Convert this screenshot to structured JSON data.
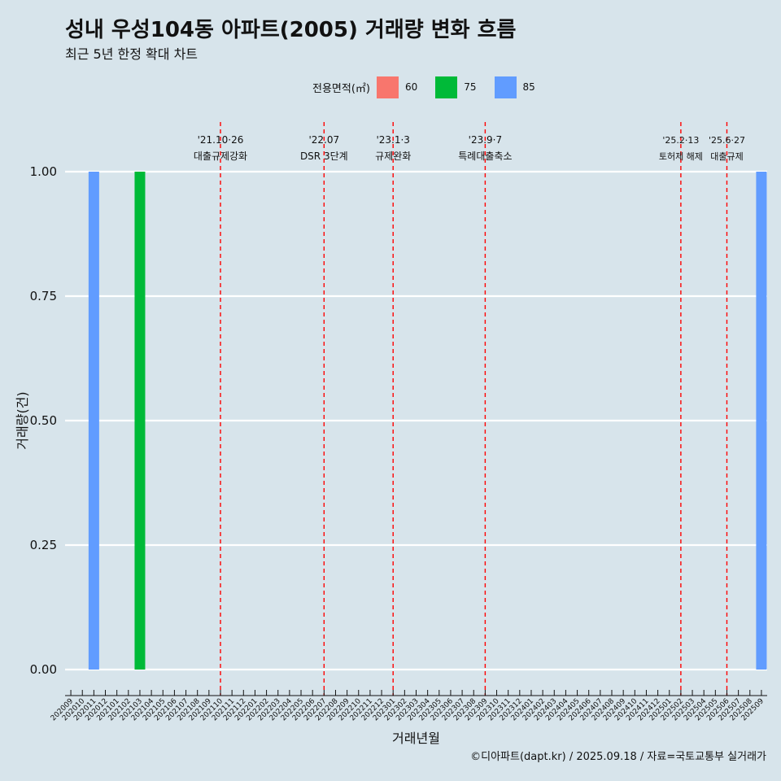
{
  "title": "성내 우성104동 아파트(2005) 거래량 변화 흐름",
  "subtitle": "최근 5년 한정 확대 차트",
  "legend": {
    "title": "전용면적(㎡)",
    "items": [
      {
        "label": "60",
        "color": "#f8766d"
      },
      {
        "label": "75",
        "color": "#00ba38"
      },
      {
        "label": "85",
        "color": "#619cff"
      }
    ]
  },
  "caption": "©디아파트(dapt.kr) / 2025.09.18 / 자료=국토교통부 실거래가",
  "chart_data": {
    "type": "bar",
    "xlabel": "거래년월",
    "ylabel": "거래량(건)",
    "ylim": [
      0,
      1
    ],
    "yticks": [
      "0.00",
      "0.25",
      "0.50",
      "0.75",
      "1.00"
    ],
    "categories": [
      "202009",
      "202010",
      "202011",
      "202012",
      "202101",
      "202102",
      "202103",
      "202104",
      "202105",
      "202106",
      "202107",
      "202108",
      "202109",
      "202110",
      "202111",
      "202112",
      "202201",
      "202202",
      "202203",
      "202204",
      "202205",
      "202206",
      "202207",
      "202208",
      "202209",
      "202210",
      "202211",
      "202212",
      "202301",
      "202302",
      "202303",
      "202304",
      "202305",
      "202306",
      "202307",
      "202308",
      "202309",
      "202310",
      "202311",
      "202312",
      "202401",
      "202402",
      "202403",
      "202404",
      "202405",
      "202406",
      "202407",
      "202408",
      "202409",
      "202410",
      "202411",
      "202412",
      "202501",
      "202502",
      "202503",
      "202504",
      "202505",
      "202506",
      "202507",
      "202508",
      "202509"
    ],
    "series": [
      {
        "name": "60",
        "color": "#f8766d",
        "points": []
      },
      {
        "name": "75",
        "color": "#00ba38",
        "points": [
          {
            "x": "202103",
            "y": 1
          }
        ]
      },
      {
        "name": "85",
        "color": "#619cff",
        "points": [
          {
            "x": "202011",
            "y": 1
          },
          {
            "x": "202509",
            "y": 1
          }
        ]
      }
    ],
    "events": [
      {
        "x": "202110",
        "date": "'21.10·26",
        "label": "대출규제강화"
      },
      {
        "x": "202207",
        "date": "'22.07",
        "label": "DSR 3단계"
      },
      {
        "x": "202301",
        "date": "'23.1·3",
        "label": "규제완화"
      },
      {
        "x": "202309",
        "date": "'23.9·7",
        "label": "특례대출축소"
      },
      {
        "x": "202502",
        "date": "'25.2·13",
        "label": "토허제 해제"
      },
      {
        "x": "202506",
        "date": "'25.6·27",
        "label": "대출규제"
      }
    ]
  }
}
